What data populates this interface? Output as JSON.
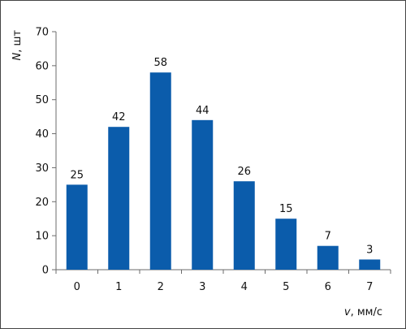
{
  "chart_data": {
    "type": "bar",
    "categories": [
      "0",
      "1",
      "2",
      "3",
      "4",
      "5",
      "6",
      "7"
    ],
    "values": [
      25,
      42,
      58,
      44,
      26,
      15,
      7,
      3
    ],
    "title": "",
    "xlabel": {
      "symbol": "v",
      "unit": ", мм/с"
    },
    "ylabel": {
      "symbol": "N",
      "unit": ", шт"
    },
    "ylim": [
      0,
      70
    ],
    "yticks": [
      "0",
      "10",
      "20",
      "30",
      "40",
      "50",
      "60",
      "70"
    ],
    "grid": false,
    "legend": "none",
    "bar_color": "#0b5cab"
  }
}
